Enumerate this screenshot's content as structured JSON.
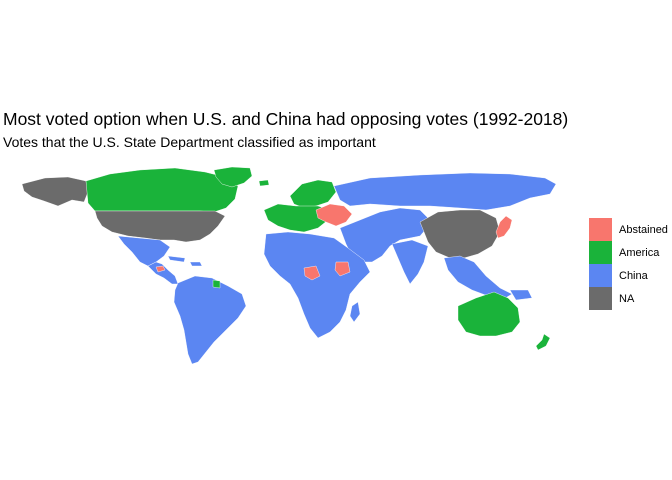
{
  "title": "Most voted option when U.S. and China had opposing votes (1992-2018)",
  "subtitle": "Votes that the U.S. State Department classified as important",
  "colors": {
    "Abstained": "#f8766d",
    "America": "#1ab33a",
    "China": "#5b86f2",
    "NA": "#6b6b6b"
  },
  "legend": [
    {
      "label": "Abstained",
      "key": "Abstained"
    },
    {
      "label": "America",
      "key": "America"
    },
    {
      "label": "China",
      "key": "China"
    },
    {
      "label": "NA",
      "key": "NA"
    }
  ],
  "regions": [
    {
      "name": "United States",
      "category": "NA"
    },
    {
      "name": "Alaska",
      "category": "NA"
    },
    {
      "name": "Canada",
      "category": "America"
    },
    {
      "name": "Greenland",
      "category": "America"
    },
    {
      "name": "Mexico",
      "category": "China"
    },
    {
      "name": "Central America",
      "category": "China"
    },
    {
      "name": "Honduras",
      "category": "Abstained"
    },
    {
      "name": "Cuba",
      "category": "China"
    },
    {
      "name": "Caribbean",
      "category": "China"
    },
    {
      "name": "South America",
      "category": "China"
    },
    {
      "name": "Suriname",
      "category": "America"
    },
    {
      "name": "Western Europe",
      "category": "America"
    },
    {
      "name": "Scandinavia",
      "category": "America"
    },
    {
      "name": "Iceland",
      "category": "America"
    },
    {
      "name": "Eastern Europe",
      "category": "Abstained"
    },
    {
      "name": "Russia",
      "category": "China"
    },
    {
      "name": "Middle East & Central Asia",
      "category": "China"
    },
    {
      "name": "India",
      "category": "China"
    },
    {
      "name": "China",
      "category": "NA"
    },
    {
      "name": "Southeast Asia",
      "category": "China"
    },
    {
      "name": "Japan",
      "category": "Abstained"
    },
    {
      "name": "Africa",
      "category": "China"
    },
    {
      "name": "Central African Republic",
      "category": "Abstained"
    },
    {
      "name": "South Sudan",
      "category": "Abstained"
    },
    {
      "name": "Madagascar",
      "category": "China"
    },
    {
      "name": "Australia",
      "category": "America"
    },
    {
      "name": "New Zealand",
      "category": "America"
    },
    {
      "name": "Papua New Guinea",
      "category": "China"
    }
  ]
}
